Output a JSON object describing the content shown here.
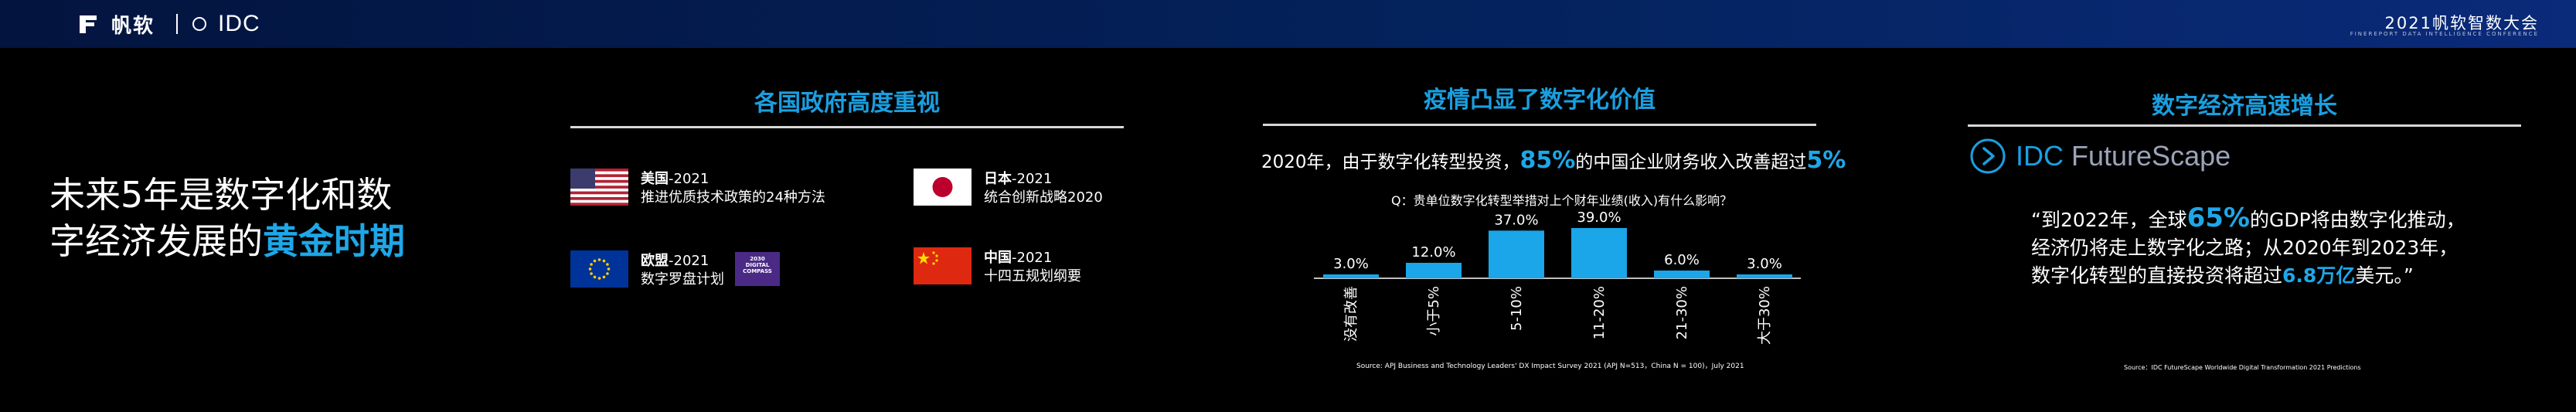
{
  "header": {
    "brand_name": "帆软",
    "idc_logo": "IDC",
    "conference_title": "2021帆软智数大会",
    "conference_subtitle": "FINEREPORT DATA INTELLIGENCE CONFERENCE"
  },
  "headline": {
    "line1": "未来5年是数字化和数",
    "line2_prefix": "字经济发展的",
    "line2_highlight": "黄金时期"
  },
  "section1": {
    "title": "各国政府高度重视",
    "countries": [
      {
        "name": "美国",
        "year": "-2021",
        "desc": "推进优质技术政策的24种方法",
        "flag": "us-flag-icon"
      },
      {
        "name": "日本",
        "year": "-2021",
        "desc": "统合创新战略2020",
        "flag": "japan-flag-icon"
      },
      {
        "name": "欧盟",
        "year": "-2021",
        "desc": "数字罗盘计划",
        "flag": "eu-flag-icon",
        "badge": [
          "2030",
          "DIGITAL",
          "COMPASS"
        ]
      },
      {
        "name": "中国",
        "year": "-2021",
        "desc": "十四五规划纲要",
        "flag": "china-flag-icon"
      }
    ]
  },
  "section2": {
    "title": "疫情凸显了数字化价值",
    "stat_prefix": "2020年，由于数字化转型投资，",
    "stat_pct1": "85%",
    "stat_middle": "的中国企业财务收入改善超过",
    "stat_pct2": "5%",
    "question": "Q：贵单位数字化转型举措对上个财年业绩(收入)有什么影响？",
    "source": "Source: APJ Business and Technology Leaders' DX Impact Survey 2021 (APJ N=513，China N = 100)，July 2021"
  },
  "chart_data": {
    "type": "bar",
    "categories": [
      "没有改善",
      "小于5%",
      "5-10%",
      "11-20%",
      "21-30%",
      "大于30%"
    ],
    "values": [
      3.0,
      12.0,
      37.0,
      39.0,
      6.0,
      3.0
    ],
    "data_labels": [
      "3.0%",
      "12.0%",
      "37.0%",
      "39.0%",
      "6.0%",
      "3.0%"
    ],
    "title": "",
    "xlabel": "",
    "ylabel": "",
    "ylim": [
      0,
      39
    ],
    "grid": false,
    "bar_color": "#1aa6e8"
  },
  "section3": {
    "title": "数字经济高速增长",
    "logo_brand": "IDC",
    "logo_product": "FutureScape",
    "quote_l1_a": "“到2022年，全球",
    "quote_l1_big": "65%",
    "quote_l1_b": "的GDP将由数字化推动，",
    "quote_l2": "经济仍将走上数字化之路；从2020年到2023年，",
    "quote_l3_a": "数字化转型的直接投资将超过",
    "quote_l3_big": "6.8万亿",
    "quote_l3_b": "美元。”",
    "source": "Source：IDC FutureScape Worldwide Digital Transformation 2021 Predictions"
  },
  "colors": {
    "accent": "#1a9fe0",
    "background": "#000000",
    "header_bar": "#04235e"
  }
}
